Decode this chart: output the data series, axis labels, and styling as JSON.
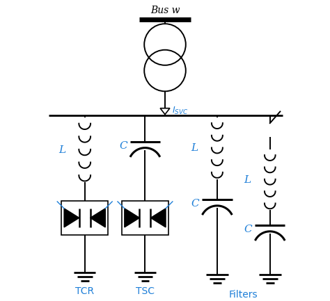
{
  "bg_color": "#ffffff",
  "line_color": "#000000",
  "blue_color": "#1E7FD8",
  "title": "Bus w",
  "labels": {
    "TCR": "TCR",
    "TSC": "TSC",
    "Filters": "Filters",
    "L1": "L",
    "L2": "L",
    "L3": "L",
    "C1": "C",
    "C2": "C",
    "C3": "C"
  },
  "figsize": [
    4.74,
    4.33
  ],
  "dpi": 100
}
